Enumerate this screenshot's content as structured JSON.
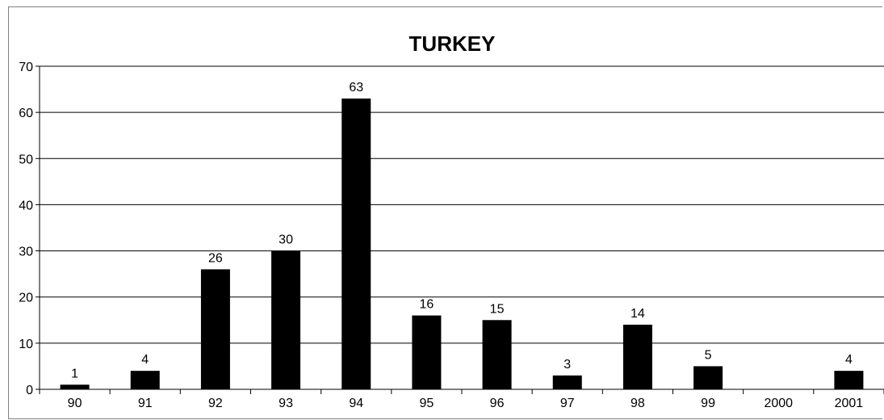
{
  "chart_data": {
    "type": "bar",
    "title": "TURKEY",
    "xlabel": "",
    "ylabel": "",
    "categories": [
      "90",
      "91",
      "92",
      "93",
      "94",
      "95",
      "96",
      "97",
      "98",
      "99",
      "2000",
      "2001"
    ],
    "values": [
      1,
      4,
      26,
      30,
      63,
      16,
      15,
      3,
      14,
      5,
      null,
      4
    ],
    "data_labels": [
      "1",
      "4",
      "26",
      "30",
      "63",
      "16",
      "15",
      "3",
      "14",
      "5",
      "",
      "4"
    ],
    "ylim": [
      0,
      70
    ],
    "yticks": [
      0,
      10,
      20,
      30,
      40,
      50,
      60,
      70
    ],
    "ytick_labels": [
      "0",
      "10",
      "20",
      "30",
      "40",
      "50",
      "60",
      "70"
    ],
    "grid": true,
    "legend": "none",
    "bar_color": "#000000",
    "grid_color": "#000000",
    "axis_color": "#808080"
  }
}
